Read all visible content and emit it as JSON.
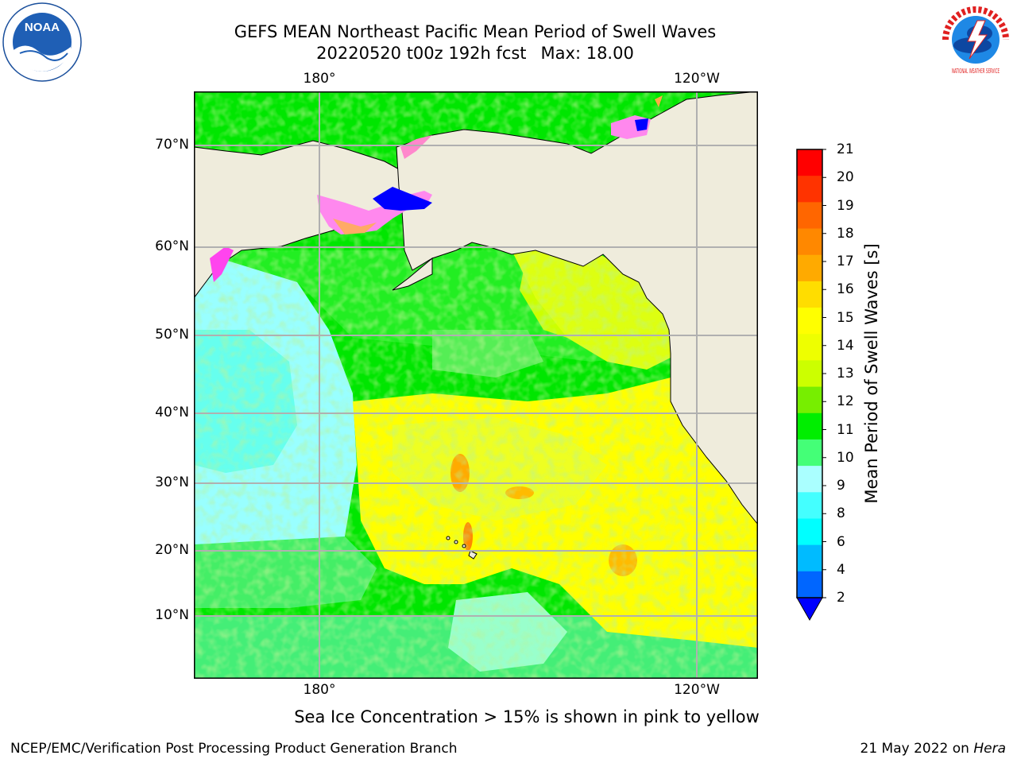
{
  "header": {
    "title_line1": "GEFS MEAN Northeast Pacific Mean Period of Swell Waves",
    "title_date": "20220520 t00z 192h fcst",
    "title_max": "Max: 18.00"
  },
  "logos": {
    "noaa": {
      "text": "NOAA"
    },
    "nws": {
      "text": "NATIONAL WEATHER SERVICE"
    }
  },
  "map": {
    "lon_labels_top": [
      "180°",
      "120°W"
    ],
    "lon_labels_bottom": [
      "180°",
      "120°W"
    ],
    "lat_labels": [
      "70°N",
      "60°N",
      "50°N",
      "40°N",
      "30°N",
      "20°N",
      "10°N"
    ],
    "land_color": "#efecdc",
    "grid_color": "#b0b0b0"
  },
  "colorbar": {
    "label": "Mean Period of Swell Waves [s]",
    "ticks": [
      "21",
      "20",
      "19",
      "18",
      "17",
      "16",
      "15",
      "14",
      "13",
      "12",
      "11",
      "10",
      "9",
      "8",
      "6",
      "4",
      "2"
    ],
    "colors_top_to_bottom": [
      "#ff0000",
      "#ff3300",
      "#ff6600",
      "#ff8800",
      "#ffaa00",
      "#ffdd00",
      "#ffff00",
      "#eeff00",
      "#ccff00",
      "#77ee00",
      "#00ee00",
      "#44ff77",
      "#aaffff",
      "#44ffff",
      "#00ffff",
      "#00bbff",
      "#0066ff"
    ],
    "under_color": "#0000ff"
  },
  "footer": {
    "sea_ice_note": "Sea Ice Concentration > 15% is shown in pink to yellow",
    "credit": "NCEP/EMC/Verification Post Processing Product Generation Branch",
    "date_text": "21 May 2022 on ",
    "host": "Hera"
  }
}
